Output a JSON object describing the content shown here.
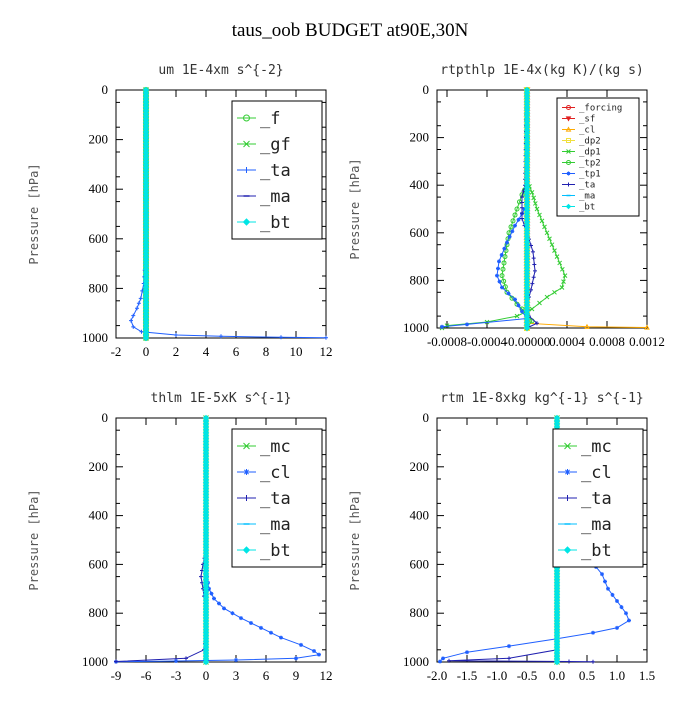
{
  "title": "taus_oob  BUDGET at90E,30N",
  "colors": {
    "green": "#33cc33",
    "blue": "#1f5fff",
    "navy": "#2020b0",
    "cyan": "#00bfff",
    "aqua": "#00e5e5",
    "red": "#e02020",
    "orange": "#ffaa00",
    "yellow": "#f0e040"
  },
  "chart_data": [
    {
      "type": "line",
      "title": "um   1E-4xm s^{-2}",
      "ylabel": "Pressure [hPa]",
      "xlim": [
        -2,
        12
      ],
      "ylim": [
        0,
        1000
      ],
      "xticks": [
        -2,
        0,
        2,
        4,
        6,
        8,
        10,
        12
      ],
      "xtick_labels": [
        "-2",
        "0",
        "2",
        "4",
        "6",
        "8",
        "10",
        "12"
      ],
      "yticks": [
        0,
        200,
        400,
        600,
        800,
        1000
      ],
      "legend": {
        "position": "top-right",
        "size": "large",
        "entries": [
          "_f",
          "_gf",
          "_ta",
          "_ma",
          "_bt"
        ]
      },
      "series": [
        {
          "name": "_f",
          "color_key": "green",
          "marker": "circle",
          "points": [
            [
              0,
              0
            ],
            [
              0,
              1000
            ]
          ]
        },
        {
          "name": "_gf",
          "color_key": "green",
          "marker": "x",
          "points": [
            [
              0,
              0
            ],
            [
              0,
              1000
            ]
          ]
        },
        {
          "name": "_ta",
          "color_key": "blue",
          "marker": "plus",
          "points": [
            [
              0,
              0
            ],
            [
              0,
              200
            ],
            [
              0,
              500
            ],
            [
              -0.05,
              700
            ],
            [
              -0.15,
              780
            ],
            [
              -0.35,
              840
            ],
            [
              -0.6,
              880
            ],
            [
              -0.85,
              910
            ],
            [
              -1.0,
              930
            ],
            [
              -0.85,
              955
            ],
            [
              -0.3,
              975
            ],
            [
              2,
              988
            ],
            [
              5,
              993
            ],
            [
              9,
              997
            ],
            [
              12,
              999
            ]
          ]
        },
        {
          "name": "_ma",
          "color_key": "navy",
          "marker": "dash",
          "points": [
            [
              0,
              0
            ],
            [
              0,
              1000
            ]
          ]
        },
        {
          "name": "_bt",
          "color_key": "aqua",
          "marker": "diamond",
          "points": [
            [
              0,
              0
            ],
            [
              0,
              1000
            ]
          ]
        }
      ]
    },
    {
      "type": "line",
      "title": "rtpthlp   1E-4x(kg K)/(kg s)",
      "ylabel": "Pressure [hPa]",
      "xlim": [
        -0.0009,
        0.0012
      ],
      "ylim": [
        0,
        1000
      ],
      "xticks": [
        -0.0008,
        -0.0004,
        0,
        0.0004,
        0.0008,
        0.0012
      ],
      "xtick_labels": [
        "-0.0008",
        "-0.0004",
        "-0.00000",
        "0.0004",
        "0.0008",
        "0.0012"
      ],
      "yticks": [
        0,
        200,
        400,
        600,
        800,
        1000
      ],
      "legend": {
        "position": "top-right",
        "size": "small",
        "entries": [
          "_forcing",
          "_sf",
          "_cl",
          "_dp2",
          "_dp1",
          "_tp2",
          "_tp1",
          "_ta",
          "_ma",
          "_bt"
        ]
      },
      "series": [
        {
          "name": "_forcing",
          "color_key": "red",
          "marker": "circle",
          "points": [
            [
              0,
              0
            ],
            [
              0,
              1000
            ]
          ]
        },
        {
          "name": "_sf",
          "color_key": "red",
          "marker": "triangle-down",
          "points": [
            [
              0,
              0
            ],
            [
              0,
              1000
            ]
          ]
        },
        {
          "name": "_cl",
          "color_key": "orange",
          "marker": "triangle",
          "points": [
            [
              0,
              0
            ],
            [
              0,
              980
            ],
            [
              0.0006,
              995
            ],
            [
              0.0012,
              998
            ]
          ]
        },
        {
          "name": "_dp2",
          "color_key": "yellow",
          "marker": "square",
          "points": [
            [
              0,
              0
            ],
            [
              0,
              1000
            ]
          ]
        },
        {
          "name": "_dp1",
          "color_key": "green",
          "marker": "x",
          "points": [
            [
              0,
              0
            ],
            [
              0,
              380
            ],
            [
              5e-05,
              430
            ],
            [
              0.0001,
              500
            ],
            [
              0.0002,
              600
            ],
            [
              0.0003,
              700
            ],
            [
              0.00038,
              780
            ],
            [
              0.00035,
              830
            ],
            [
              0.0002,
              870
            ],
            [
              5e-05,
              920
            ],
            [
              -0.0001,
              950
            ],
            [
              -0.0004,
              975
            ],
            [
              -0.0008,
              990
            ],
            [
              -0.00085,
              1000
            ]
          ]
        },
        {
          "name": "_tp2",
          "color_key": "green",
          "marker": "circle",
          "points": [
            [
              0,
              0
            ],
            [
              0,
              400
            ],
            [
              -5e-05,
              440
            ],
            [
              -0.0001,
              500
            ],
            [
              -0.00018,
              600
            ],
            [
              -0.00022,
              700
            ],
            [
              -0.00025,
              780
            ],
            [
              -0.0002,
              850
            ],
            [
              -0.0001,
              900
            ],
            [
              0,
              940
            ],
            [
              5e-05,
              970
            ],
            [
              0,
              1000
            ]
          ]
        },
        {
          "name": "_tp1",
          "color_key": "blue",
          "marker": "star",
          "points": [
            [
              0,
              0
            ],
            [
              0,
              480
            ],
            [
              -5e-05,
              520
            ],
            [
              -0.00012,
              570
            ],
            [
              -0.0002,
              640
            ],
            [
              -0.00028,
              720
            ],
            [
              -0.0003,
              780
            ],
            [
              -0.00025,
              830
            ],
            [
              -0.00012,
              880
            ],
            [
              -5e-05,
              930
            ],
            [
              0,
              960
            ],
            [
              -0.0006,
              985
            ],
            [
              -0.00085,
              995
            ]
          ]
        },
        {
          "name": "_ta",
          "color_key": "navy",
          "marker": "plus",
          "points": [
            [
              0,
              0
            ],
            [
              -2e-05,
              400
            ],
            [
              -5e-05,
              450
            ],
            [
              -5e-05,
              540
            ],
            [
              0,
              600
            ],
            [
              6e-05,
              680
            ],
            [
              8e-05,
              760
            ],
            [
              4e-05,
              840
            ],
            [
              0,
              900
            ],
            [
              2e-05,
              950
            ],
            [
              0.0001,
              980
            ],
            [
              0,
              1000
            ]
          ]
        },
        {
          "name": "_ma",
          "color_key": "cyan",
          "marker": "dash",
          "points": [
            [
              0,
              0
            ],
            [
              0,
              1000
            ]
          ]
        },
        {
          "name": "_bt",
          "color_key": "aqua",
          "marker": "diamond",
          "points": [
            [
              0,
              0
            ],
            [
              0,
              1000
            ]
          ]
        }
      ]
    },
    {
      "type": "line",
      "title": "thlm   1E-5xK s^{-1}",
      "ylabel": "Pressure [hPa]",
      "xlim": [
        -9,
        12
      ],
      "ylim": [
        0,
        1000
      ],
      "xticks": [
        -9,
        -6,
        -3,
        0,
        3,
        6,
        9,
        12
      ],
      "xtick_labels": [
        "-9",
        "-6",
        "-3",
        "0",
        "3",
        "6",
        "9",
        "12"
      ],
      "yticks": [
        0,
        200,
        400,
        600,
        800,
        1000
      ],
      "legend": {
        "position": "top-right",
        "size": "large",
        "entries": [
          "_mc",
          "_cl",
          "_ta",
          "_ma",
          "_bt"
        ]
      },
      "series": [
        {
          "name": "_mc",
          "color_key": "green",
          "marker": "x",
          "points": [
            [
              0,
              0
            ],
            [
              0,
              1000
            ]
          ]
        },
        {
          "name": "_cl",
          "color_key": "blue",
          "marker": "star",
          "points": [
            [
              0,
              0
            ],
            [
              0,
              550
            ],
            [
              0.1,
              650
            ],
            [
              0.3,
              700
            ],
            [
              0.8,
              740
            ],
            [
              1.8,
              780
            ],
            [
              3.5,
              820
            ],
            [
              5.5,
              860
            ],
            [
              7.5,
              900
            ],
            [
              9.5,
              930
            ],
            [
              10.8,
              955
            ],
            [
              11.3,
              970
            ],
            [
              9,
              985
            ],
            [
              3,
              992
            ],
            [
              -3,
              996
            ],
            [
              -9,
              999
            ]
          ]
        },
        {
          "name": "_ta",
          "color_key": "navy",
          "marker": "plus",
          "points": [
            [
              0,
              0
            ],
            [
              0,
              550
            ],
            [
              -0.3,
              600
            ],
            [
              -0.5,
              650
            ],
            [
              -0.3,
              700
            ],
            [
              -0.1,
              760
            ],
            [
              0,
              900
            ],
            [
              -0.2,
              950
            ],
            [
              -2,
              985
            ],
            [
              -9,
              998
            ]
          ]
        },
        {
          "name": "_ma",
          "color_key": "cyan",
          "marker": "dash",
          "points": [
            [
              0,
              0
            ],
            [
              0,
              1000
            ]
          ]
        },
        {
          "name": "_bt",
          "color_key": "aqua",
          "marker": "diamond",
          "points": [
            [
              0,
              0
            ],
            [
              0,
              1000
            ]
          ]
        }
      ]
    },
    {
      "type": "line",
      "title": "rtm   1E-8xkg kg^{-1} s^{-1}",
      "ylabel": "Pressure [hPa]",
      "xlim": [
        -2,
        1.5
      ],
      "ylim": [
        0,
        1000
      ],
      "xticks": [
        -2,
        -1.5,
        -1,
        -0.5,
        0,
        0.5,
        1,
        1.5
      ],
      "xtick_labels": [
        "-2.0",
        "-1.5",
        "-1.0",
        "-0.5",
        "0.0",
        "0.5",
        "1.0",
        "1.5"
      ],
      "yticks": [
        0,
        200,
        400,
        600,
        800,
        1000
      ],
      "legend": {
        "position": "top-right",
        "size": "large",
        "entries": [
          "_mc",
          "_cl",
          "_ta",
          "_ma",
          "_bt"
        ]
      },
      "series": [
        {
          "name": "_mc",
          "color_key": "green",
          "marker": "x",
          "points": [
            [
              0,
              0
            ],
            [
              0,
              1000
            ]
          ]
        },
        {
          "name": "_cl",
          "color_key": "blue",
          "marker": "star",
          "points": [
            [
              0,
              0
            ],
            [
              0.02,
              150
            ],
            [
              0.05,
              300
            ],
            [
              0.08,
              400
            ],
            [
              0.2,
              450
            ],
            [
              0.4,
              520
            ],
            [
              0.55,
              580
            ],
            [
              0.75,
              640
            ],
            [
              0.85,
              700
            ],
            [
              1.0,
              750
            ],
            [
              1.15,
              800
            ],
            [
              1.2,
              830
            ],
            [
              1.0,
              860
            ],
            [
              0.6,
              880
            ],
            [
              0,
              905
            ],
            [
              -0.8,
              935
            ],
            [
              -1.5,
              960
            ],
            [
              -1.9,
              985
            ],
            [
              -1.95,
              998
            ]
          ]
        },
        {
          "name": "_ta",
          "color_key": "navy",
          "marker": "plus",
          "points": [
            [
              0,
              0
            ],
            [
              0,
              950
            ],
            [
              -0.8,
              985
            ],
            [
              -1.8,
              995
            ],
            [
              0.2,
              998
            ],
            [
              0.6,
              999
            ]
          ]
        },
        {
          "name": "_ma",
          "color_key": "cyan",
          "marker": "dash",
          "points": [
            [
              0,
              0
            ],
            [
              0,
              1000
            ]
          ]
        },
        {
          "name": "_bt",
          "color_key": "aqua",
          "marker": "diamond",
          "points": [
            [
              0,
              0
            ],
            [
              0,
              1000
            ]
          ]
        }
      ]
    }
  ]
}
